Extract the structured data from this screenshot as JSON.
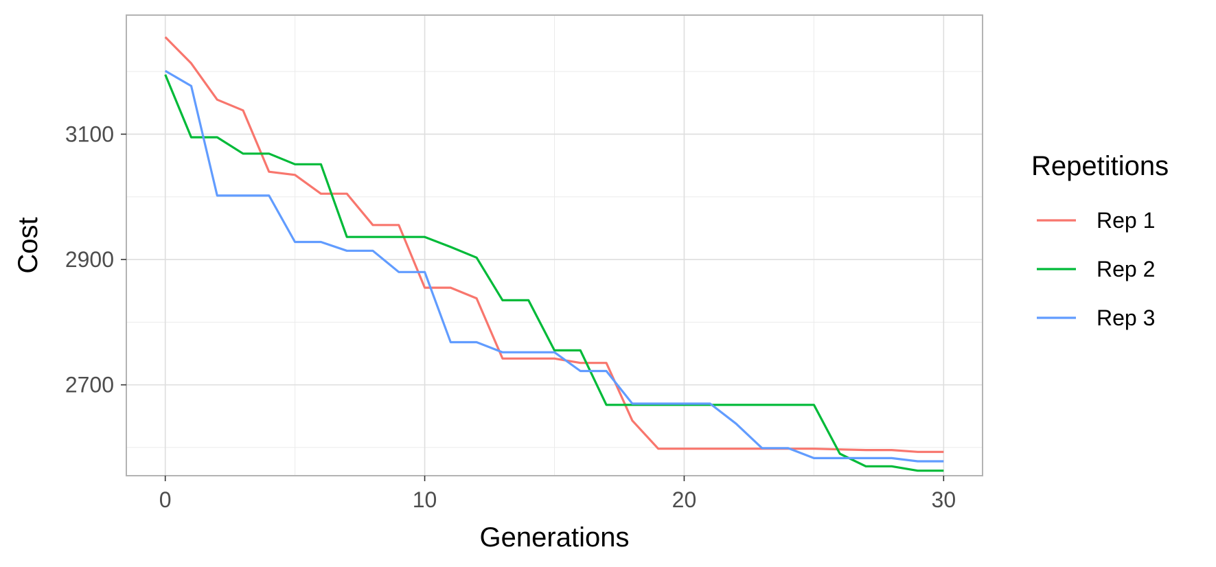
{
  "chart_data": {
    "type": "line",
    "xlabel": "Generations",
    "ylabel": "Cost",
    "xlim": [
      -1.5,
      31.5
    ],
    "ylim": [
      2555,
      3290
    ],
    "x_ticks": [
      0,
      10,
      20,
      30
    ],
    "x_tick_labels": [
      "0",
      "10",
      "20",
      "30"
    ],
    "x_minor_ticks": [
      5,
      15,
      25
    ],
    "y_ticks": [
      2700,
      2900,
      3100
    ],
    "y_tick_labels": [
      "2700",
      "2900",
      "3100"
    ],
    "y_minor_ticks": [
      2600,
      2800,
      3000,
      3200
    ],
    "grid": true,
    "legend": {
      "title": "Repetitions",
      "position": "right"
    },
    "x": [
      0,
      1,
      2,
      3,
      4,
      5,
      6,
      7,
      8,
      9,
      10,
      11,
      12,
      13,
      14,
      15,
      16,
      17,
      18,
      19,
      20,
      21,
      22,
      23,
      24,
      25,
      26,
      27,
      28,
      29,
      30
    ],
    "series": [
      {
        "name": "Rep 1",
        "color": "#F8766D",
        "values": [
          3255,
          3213,
          3155,
          3138,
          3040,
          3035,
          3005,
          3005,
          2955,
          2955,
          2855,
          2855,
          2838,
          2742,
          2742,
          2742,
          2735,
          2735,
          2643,
          2598,
          2598,
          2598,
          2598,
          2598,
          2598,
          2598,
          2597,
          2596,
          2596,
          2593,
          2593
        ]
      },
      {
        "name": "Rep 2",
        "color": "#00BA38",
        "values": [
          3195,
          3095,
          3095,
          3069,
          3069,
          3052,
          3052,
          2936,
          2936,
          2936,
          2936,
          2920,
          2903,
          2835,
          2835,
          2755,
          2755,
          2668,
          2668,
          2668,
          2668,
          2668,
          2668,
          2668,
          2668,
          2668,
          2590,
          2570,
          2570,
          2563,
          2563
        ]
      },
      {
        "name": "Rep 3",
        "color": "#619CFF",
        "values": [
          3201,
          3177,
          3002,
          3002,
          3002,
          2928,
          2928,
          2914,
          2914,
          2880,
          2880,
          2768,
          2768,
          2752,
          2752,
          2752,
          2722,
          2722,
          2670,
          2670,
          2670,
          2670,
          2638,
          2599,
          2599,
          2583,
          2583,
          2583,
          2583,
          2578,
          2578
        ]
      }
    ]
  }
}
